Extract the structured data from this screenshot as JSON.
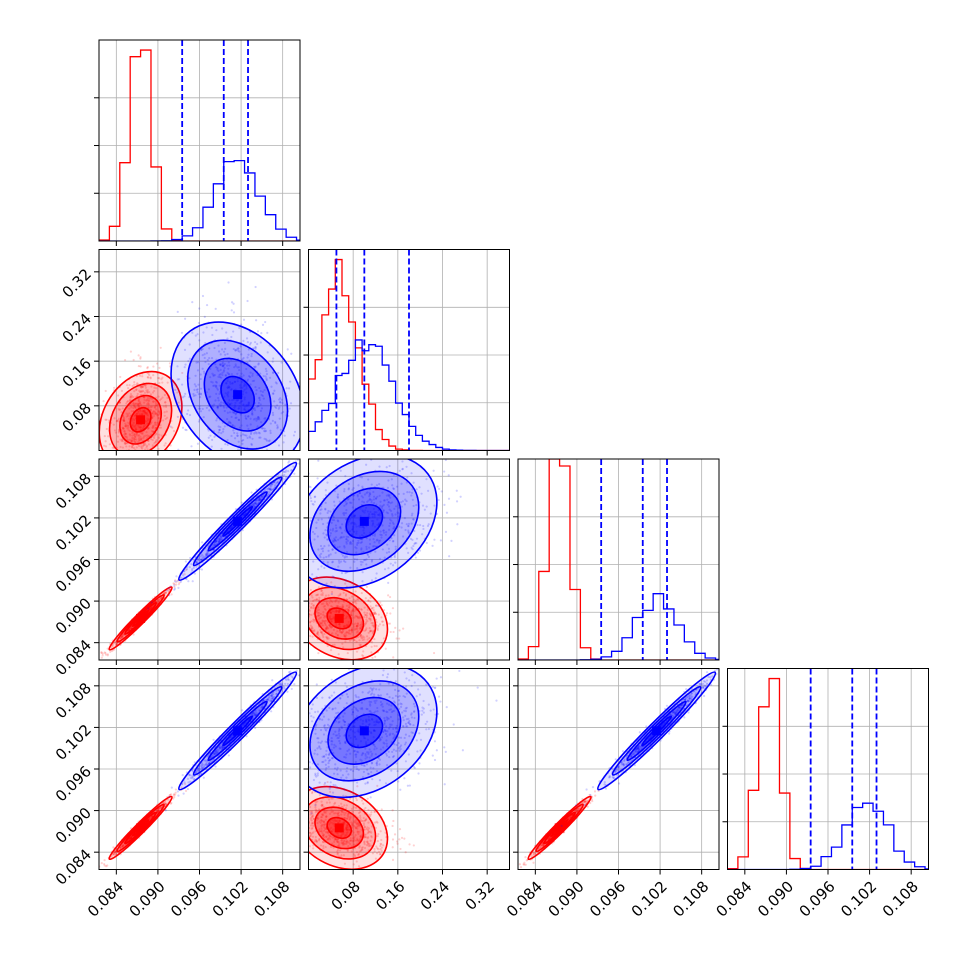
{
  "chart_data": {
    "type": "corner",
    "n_params": 4,
    "grid": true,
    "params": [
      {
        "range": [
          0.0815,
          0.1105
        ],
        "ticks": [
          0.084,
          0.09,
          0.096,
          0.102,
          0.108
        ],
        "tick_labels": [
          "0.084",
          "0.090",
          "0.096",
          "0.102",
          "0.108"
        ]
      },
      {
        "range": [
          0.0,
          0.36
        ],
        "ticks": [
          0.08,
          0.16,
          0.24,
          0.32
        ],
        "tick_labels": [
          "0.08",
          "0.16",
          "0.24",
          "0.32"
        ]
      },
      {
        "range": [
          0.0815,
          0.1105
        ],
        "ticks": [
          0.084,
          0.09,
          0.096,
          0.102,
          0.108
        ],
        "tick_labels": [
          "0.084",
          "0.090",
          "0.096",
          "0.102",
          "0.108"
        ]
      },
      {
        "range": [
          0.0815,
          0.1105
        ],
        "ticks": [
          0.084,
          0.09,
          0.096,
          0.102,
          0.108
        ],
        "tick_labels": [
          "0.084",
          "0.090",
          "0.096",
          "0.102",
          "0.108"
        ]
      }
    ],
    "series": [
      {
        "color": "#ff0000",
        "fill_color": "#ff0000",
        "means": [
          0.0875,
          0.055,
          0.0875,
          0.0875
        ],
        "sds": [
          0.0016,
          0.035,
          0.0016,
          0.0016
        ],
        "corr_12": -0.3,
        "hist_norm": [
          0.95,
          0.95,
          1.0,
          0.95
        ],
        "hist_bins": [
          0.0015,
          0.012,
          0.0015,
          0.0015
        ]
      },
      {
        "color": "#0000ff",
        "fill_color": "#0000ff",
        "means": [
          0.1015,
          0.1,
          0.1015,
          0.1015
        ],
        "sds": [
          0.003,
          0.05,
          0.003,
          0.003
        ],
        "corr_12": 0.3,
        "hist_norm": [
          0.4,
          0.55,
          0.33,
          0.33
        ],
        "hist_bins": [
          0.0015,
          0.012,
          0.0015,
          0.0015
        ],
        "quantile_lines": [
          [
            0.0935,
            0.0995,
            0.103
          ],
          [
            0.05,
            0.1,
            0.18
          ],
          [
            0.0935,
            0.0995,
            0.103
          ],
          [
            0.0935,
            0.0995,
            0.103
          ]
        ]
      }
    ]
  }
}
